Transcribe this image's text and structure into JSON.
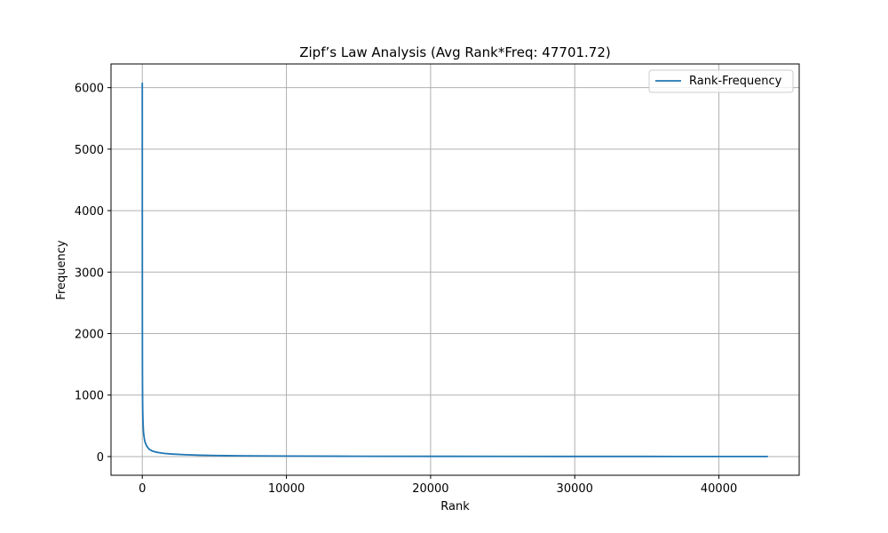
{
  "chart_data": {
    "type": "line",
    "title": "Zipf’s Law Analysis (Avg Rank*Freq: 47701.72)",
    "xlabel": "Rank",
    "ylabel": "Frequency",
    "xlim": [
      -2170,
      45570
    ],
    "ylim": [
      -304,
      6385
    ],
    "xticks": [
      0,
      10000,
      20000,
      30000,
      40000
    ],
    "xtick_labels": [
      "0",
      "10000",
      "20000",
      "30000",
      "40000"
    ],
    "yticks": [
      0,
      1000,
      2000,
      3000,
      4000,
      5000,
      6000
    ],
    "ytick_labels": [
      "0",
      "1000",
      "2000",
      "3000",
      "4000",
      "5000",
      "6000"
    ],
    "grid": true,
    "legend_position": "top-right",
    "series": [
      {
        "name": "Rank-Frequency",
        "color": "#1f77b4",
        "x": [
          1,
          2,
          3,
          5,
          8,
          10,
          15,
          20,
          30,
          50,
          75,
          100,
          150,
          200,
          300,
          400,
          500,
          700,
          1000,
          1500,
          2000,
          3000,
          4000,
          5000,
          7000,
          10000,
          15000,
          20000,
          25000,
          30000,
          35000,
          40000,
          43400
        ],
        "y": [
          6080,
          4500,
          3300,
          2400,
          1800,
          1500,
          1150,
          950,
          750,
          560,
          430,
          360,
          280,
          230,
          175,
          140,
          115,
          90,
          70,
          52,
          42,
          30,
          22,
          17,
          12,
          8,
          5,
          4,
          3,
          2,
          2,
          1,
          1
        ]
      }
    ]
  }
}
